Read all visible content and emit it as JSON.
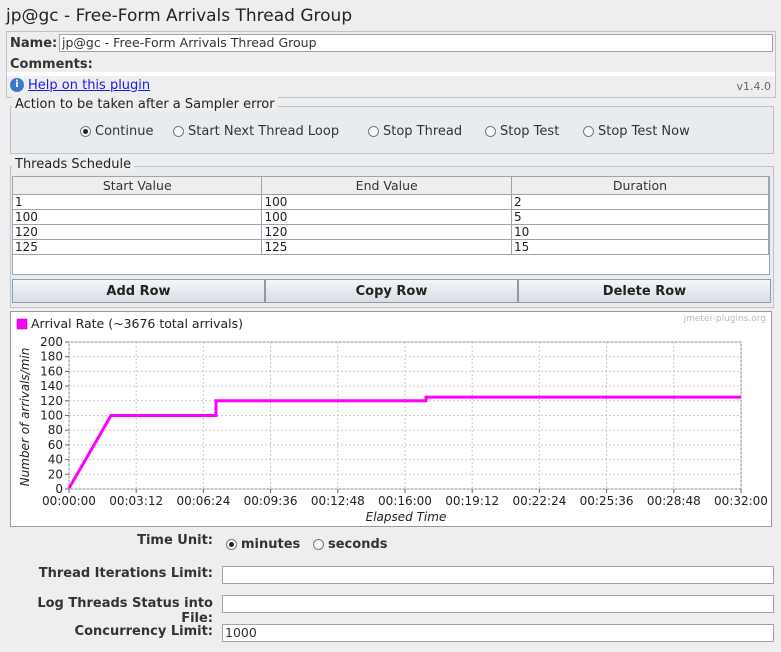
{
  "window": {
    "title": "jp@gc - Free-Form Arrivals Thread Group"
  },
  "form": {
    "name_label": "Name:",
    "name_value": "jp@gc - Free-Form Arrivals Thread Group",
    "comments_label": "Comments:",
    "comments_value": "",
    "help_link": "Help on this plugin",
    "version": "v1.4.0"
  },
  "sampler_error": {
    "title": "Action to be taken after a Sampler error",
    "options": [
      "Continue",
      "Start Next Thread Loop",
      "Stop Thread",
      "Stop Test",
      "Stop Test Now"
    ],
    "selected": "Continue"
  },
  "schedule": {
    "title": "Threads Schedule",
    "columns": [
      "Start Value",
      "End Value",
      "Duration"
    ],
    "rows": [
      [
        "1",
        "100",
        "2"
      ],
      [
        "100",
        "100",
        "5"
      ],
      [
        "120",
        "120",
        "10"
      ],
      [
        "125",
        "125",
        "15"
      ]
    ],
    "buttons": {
      "add": "Add Row",
      "copy": "Copy Row",
      "delete": "Delete Row"
    }
  },
  "chart_data": {
    "type": "line",
    "watermark": "jmeter-plugins.org",
    "series": [
      {
        "name": "Arrival Rate (~3676 total arrivals)",
        "color": "#ff00ff",
        "x": [
          "00:00:00",
          "00:02:00",
          "00:07:00",
          "00:07:00",
          "00:17:00",
          "00:17:00",
          "00:32:00"
        ],
        "x_minutes": [
          0,
          2,
          7,
          7,
          17,
          17,
          32
        ],
        "y": [
          1,
          100,
          100,
          120,
          120,
          125,
          125
        ]
      }
    ],
    "xlabel": "Elapsed Time",
    "ylabel": "Number of arrivals/min",
    "xlim_minutes": [
      0,
      32
    ],
    "ylim": [
      0,
      200
    ],
    "x_tick_minutes": [
      0,
      3.2,
      6.4,
      9.6,
      12.8,
      16,
      19.2,
      22.4,
      25.6,
      28.8,
      32
    ],
    "x_ticks": [
      "00:00:00",
      "00:03:12",
      "00:06:24",
      "00:09:36",
      "00:12:48",
      "00:16:00",
      "00:19:12",
      "00:22:24",
      "00:25:36",
      "00:28:48",
      "00:32:00"
    ],
    "y_ticks": [
      0,
      20,
      40,
      60,
      80,
      100,
      120,
      140,
      160,
      180,
      200
    ],
    "grid": true,
    "legend_position": "top-left"
  },
  "settings": {
    "time_unit_label": "Time Unit:",
    "time_unit_options": [
      "minutes",
      "seconds"
    ],
    "time_unit_selected": "minutes",
    "iterations_label": "Thread Iterations Limit:",
    "iterations_value": "",
    "log_status_label": "Log Threads Status into File:",
    "log_status_value": "",
    "concurrency_label": "Concurrency Limit:",
    "concurrency_value": "1000"
  }
}
